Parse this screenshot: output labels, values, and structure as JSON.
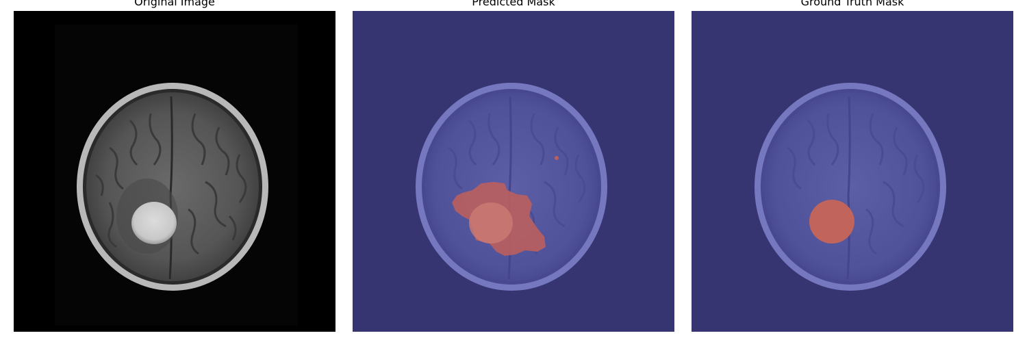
{
  "figure": {
    "panels": [
      {
        "title": "Original Image"
      },
      {
        "title": "Predicted Mask"
      },
      {
        "title": "Ground Truth Mask"
      }
    ]
  },
  "colors": {
    "background_scan": "#000000",
    "overlay_background": "#363572",
    "overlay_brain": "#6d6fb8",
    "overlay_tumor": "#c0645c",
    "tumor_bright": "#d8d4d0"
  }
}
